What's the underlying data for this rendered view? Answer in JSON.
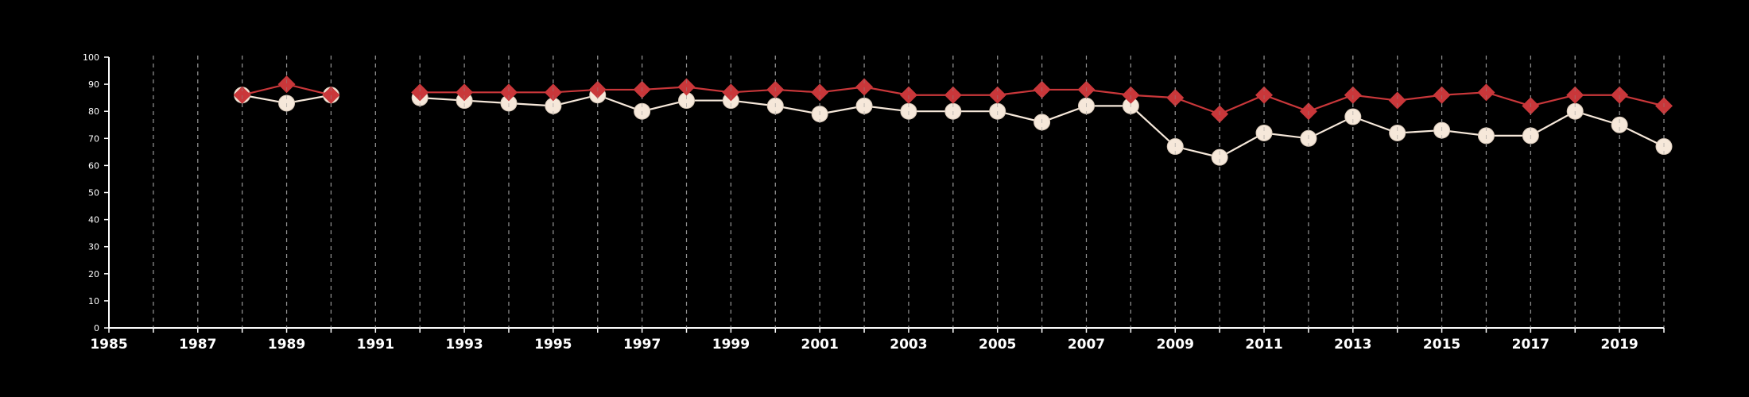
{
  "chart_data": {
    "type": "line",
    "title": "",
    "xlabel": "",
    "ylabel": "",
    "xlim": [
      1985,
      2020
    ],
    "ylim": [
      0,
      100
    ],
    "y_ticks": [
      0,
      10,
      20,
      30,
      40,
      50,
      60,
      70,
      80,
      90,
      100
    ],
    "x_tick_labels": [
      1985,
      1987,
      1989,
      1991,
      1993,
      1995,
      1997,
      1999,
      2001,
      2003,
      2005,
      2007,
      2009,
      2011,
      2013,
      2015,
      2017,
      2019
    ],
    "vertical_gridlines": "dashed, every year",
    "background": "#000000",
    "series": [
      {
        "marker": "diamond",
        "color": "#c9373a",
        "segments": [
          [
            [
              1988,
              86
            ],
            [
              1989,
              90
            ],
            [
              1990,
              86
            ]
          ],
          [
            [
              1992,
              87
            ],
            [
              1993,
              87
            ],
            [
              1994,
              87
            ],
            [
              1995,
              87
            ],
            [
              1996,
              88
            ],
            [
              1997,
              88
            ],
            [
              1998,
              89
            ],
            [
              1999,
              87
            ],
            [
              2000,
              88
            ],
            [
              2001,
              87
            ],
            [
              2002,
              89
            ],
            [
              2003,
              86
            ],
            [
              2004,
              86
            ],
            [
              2005,
              86
            ],
            [
              2006,
              88
            ],
            [
              2007,
              88
            ],
            [
              2008,
              86
            ],
            [
              2009,
              85
            ],
            [
              2010,
              79
            ],
            [
              2011,
              86
            ],
            [
              2012,
              80
            ],
            [
              2013,
              86
            ],
            [
              2014,
              84
            ],
            [
              2015,
              86
            ],
            [
              2016,
              87
            ],
            [
              2017,
              82
            ],
            [
              2018,
              86
            ],
            [
              2019,
              86
            ],
            [
              2020,
              82
            ]
          ]
        ]
      },
      {
        "marker": "circle",
        "color": "#f6e8da",
        "segments": [
          [
            [
              1988,
              86
            ],
            [
              1989,
              83
            ],
            [
              1990,
              86
            ]
          ],
          [
            [
              1992,
              85
            ],
            [
              1993,
              84
            ],
            [
              1994,
              83
            ],
            [
              1995,
              82
            ],
            [
              1996,
              86
            ],
            [
              1997,
              80
            ],
            [
              1998,
              84
            ],
            [
              1999,
              84
            ],
            [
              2000,
              82
            ],
            [
              2001,
              79
            ],
            [
              2002,
              82
            ],
            [
              2003,
              80
            ],
            [
              2004,
              80
            ],
            [
              2005,
              80
            ],
            [
              2006,
              76
            ],
            [
              2007,
              82
            ],
            [
              2008,
              82
            ],
            [
              2009,
              67
            ],
            [
              2010,
              63
            ],
            [
              2011,
              72
            ],
            [
              2012,
              70
            ],
            [
              2013,
              78
            ],
            [
              2014,
              72
            ],
            [
              2015,
              73
            ],
            [
              2016,
              71
            ],
            [
              2017,
              71
            ],
            [
              2018,
              80
            ],
            [
              2019,
              75
            ],
            [
              2020,
              67
            ]
          ]
        ]
      }
    ]
  }
}
